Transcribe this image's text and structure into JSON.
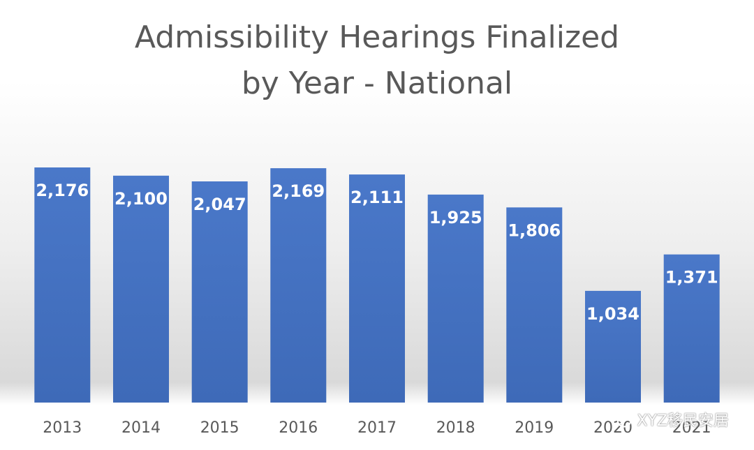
{
  "chart_data": {
    "type": "bar",
    "title": [
      "Admissibility Hearings Finalized",
      "by Year - National"
    ],
    "categories": [
      "2013",
      "2014",
      "2015",
      "2016",
      "2017",
      "2018",
      "2019",
      "2020",
      "2021"
    ],
    "values": [
      2176,
      2100,
      2047,
      2169,
      2111,
      1925,
      1806,
      1034,
      1371
    ],
    "data_labels": [
      "2,176",
      "2,100",
      "2,047",
      "2,169",
      "2,111",
      "1,925",
      "1,806",
      "1,034",
      "1,371"
    ],
    "xlabel": "",
    "ylabel": "",
    "ylim": [
      0,
      2200
    ],
    "grid": false,
    "legend": "none",
    "bar_color": "#4472C4",
    "label_color": "#FFFFFF",
    "tick_color": "#595959"
  },
  "watermark": {
    "text": "XYZ移民安居",
    "icon": "wechat-icon"
  }
}
